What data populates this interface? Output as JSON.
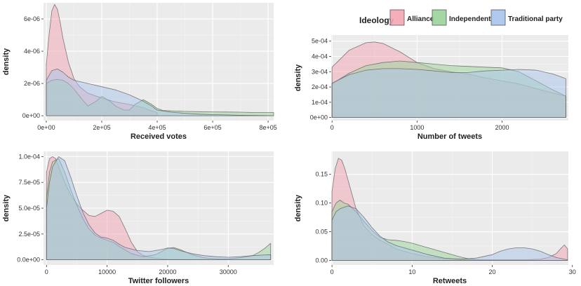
{
  "legend": {
    "title": "Ideology",
    "entries": [
      {
        "label": "Alliance",
        "color": "#f4a6b3"
      },
      {
        "label": "Independent",
        "color": "#9ad39a"
      },
      {
        "label": "Traditional party",
        "color": "#a9c3ec"
      }
    ]
  },
  "chart_data": [
    {
      "type": "area",
      "xlabel": "Received votes",
      "ylabel": "density",
      "xlim": [
        -10000,
        820000
      ],
      "ylim": [
        -3e-07,
        7e-06
      ],
      "xticks": [
        0,
        200000,
        400000,
        600000,
        800000
      ],
      "xtick_labels": [
        "0e+00",
        "2e+05",
        "4e+05",
        "6e+05",
        "8e+05"
      ],
      "yticks": [
        0,
        2e-06,
        4e-06,
        6e-06
      ],
      "ytick_labels": [
        "0e+00",
        "2e-06",
        "4e-06",
        "6e-06"
      ],
      "grid": true,
      "series": [
        {
          "name": "Alliance",
          "x": [
            0,
            10000,
            20000,
            30000,
            40000,
            50000,
            60000,
            80000,
            100000,
            120000,
            150000,
            200000,
            250000,
            300000,
            350000,
            380000,
            400000
          ],
          "y": [
            3.2e-06,
            5e-06,
            6.5e-06,
            6.9e-06,
            6.6e-06,
            5.8e-06,
            4.8e-06,
            3.3e-06,
            2.3e-06,
            1.8e-06,
            1.4e-06,
            1.1e-06,
            8.5e-07,
            7e-07,
            5e-07,
            3e-07,
            2e-07
          ]
        },
        {
          "name": "Independent",
          "x": [
            0,
            20000,
            40000,
            60000,
            80000,
            100000,
            130000,
            150000,
            180000,
            200000,
            230000,
            250000,
            280000,
            300000,
            320000,
            350000,
            380000,
            400000,
            420000,
            450000,
            500000,
            550000,
            600000,
            650000,
            700000,
            750000,
            800000,
            820000
          ],
          "y": [
            2e-06,
            2.2e-06,
            2.25e-06,
            2.2e-06,
            2e-06,
            1.65e-06,
            1e-06,
            6e-07,
            9e-07,
            1.2e-06,
            9e-07,
            6e-07,
            3.5e-07,
            3.5e-07,
            7e-07,
            1e-06,
            7e-07,
            4.5e-07,
            3.3e-07,
            3e-07,
            2.7e-07,
            2.5e-07,
            2.4e-07,
            2.3e-07,
            2.2e-07,
            2e-07,
            2e-07,
            2e-07
          ]
        },
        {
          "name": "Traditional party",
          "x": [
            0,
            20000,
            40000,
            60000,
            80000,
            100000,
            150000,
            200000,
            250000,
            300000,
            350000,
            380000,
            400000,
            420000,
            450000,
            500000,
            550000,
            600000,
            650000,
            700000,
            750000,
            800000,
            820000
          ],
          "y": [
            2.2e-06,
            2.8e-06,
            2.9e-06,
            2.7e-06,
            2.4e-06,
            2.2e-06,
            2e-06,
            1.8e-06,
            1.6e-06,
            1.3e-06,
            9e-07,
            6e-07,
            3.5e-07,
            3e-07,
            2.2e-07,
            1.5e-07,
            1e-07,
            7e-08,
            5e-08,
            3e-08,
            2e-08,
            1e-08,
            0
          ]
        }
      ]
    },
    {
      "type": "area",
      "xlabel": "Number of tweets",
      "ylabel": "density",
      "xlim": [
        -10,
        2780
      ],
      "ylim": [
        -2e-05,
        0.00054
      ],
      "xticks": [
        0,
        1000,
        2000
      ],
      "xtick_labels": [
        "0",
        "1000",
        "2000"
      ],
      "yticks": [
        0,
        0.0001,
        0.0002,
        0.0003,
        0.0004,
        0.0005
      ],
      "ytick_labels": [
        "0e+00",
        "1e-04",
        "2e-04",
        "3e-04",
        "4e-04",
        "5e-04"
      ],
      "grid": true,
      "series": [
        {
          "name": "Alliance",
          "x": [
            0,
            200,
            400,
            500,
            600,
            800,
            1000,
            1200,
            1400,
            1600,
            1800,
            2000,
            2200,
            2400,
            2600,
            2750
          ],
          "y": [
            0.00033,
            0.00044,
            0.00049,
            0.000495,
            0.000485,
            0.00043,
            0.00036,
            0.00032,
            0.0003,
            0.000285,
            0.00026,
            0.00024,
            0.00022,
            0.00019,
            0.00016,
            0.00014
          ]
        },
        {
          "name": "Independent",
          "x": [
            0,
            200,
            400,
            600,
            800,
            1000,
            1200,
            1400,
            1600,
            1800,
            2000,
            2200,
            2400,
            2600,
            2750
          ],
          "y": [
            0.00022,
            0.00029,
            0.00034,
            0.00036,
            0.00037,
            0.00036,
            0.00035,
            0.00034,
            0.000335,
            0.00033,
            0.000325,
            0.0003,
            0.00024,
            0.00018,
            0.00014
          ]
        },
        {
          "name": "Traditional party",
          "x": [
            0,
            200,
            400,
            600,
            800,
            1000,
            1200,
            1400,
            1600,
            1800,
            2000,
            2200,
            2400,
            2600,
            2750
          ],
          "y": [
            0.000225,
            0.00028,
            0.00031,
            0.00032,
            0.00032,
            0.000315,
            0.000305,
            0.000295,
            0.000295,
            0.000305,
            0.00031,
            0.000315,
            0.00031,
            0.000285,
            0.000255
          ]
        }
      ]
    },
    {
      "type": "area",
      "xlabel": "Twitter followers",
      "ylabel": "density",
      "xlim": [
        -500,
        37500
      ],
      "ylim": [
        -5e-06,
        0.000105
      ],
      "xticks": [
        0,
        10000,
        20000,
        30000
      ],
      "xtick_labels": [
        "0",
        "10000",
        "20000",
        "30000"
      ],
      "yticks": [
        0,
        2.5e-05,
        5e-05,
        7.5e-05,
        0.0001
      ],
      "ytick_labels": [
        "0.0e+00",
        "2.5e-05",
        "5.0e-05",
        "7.5e-05",
        "1.0e-04"
      ],
      "grid": true,
      "series": [
        {
          "name": "Alliance",
          "x": [
            0,
            500,
            1000,
            1500,
            2000,
            3000,
            4000,
            5000,
            6000,
            7000,
            8000,
            9000,
            10000,
            11000,
            12000,
            13000,
            14000,
            15000,
            16000,
            18000,
            20000,
            25000,
            30000,
            37000
          ],
          "y": [
            8.5e-05,
            9.8e-05,
            0.0001,
            9.8e-05,
            9e-05,
            7.5e-05,
            6.3e-05,
            5.4e-05,
            4.8e-05,
            4.3e-05,
            4.2e-05,
            4.5e-05,
            4.8e-05,
            4.7e-05,
            4.2e-05,
            3e-05,
            1.7e-05,
            8e-06,
            4e-06,
            1.5e-06,
            5e-07,
            2e-07,
            1e-07,
            0
          ]
        },
        {
          "name": "Independent",
          "x": [
            0,
            500,
            1000,
            2000,
            3000,
            4000,
            5000,
            6000,
            7000,
            8000,
            9000,
            10000,
            11000,
            12000,
            14000,
            16000,
            18000,
            20000,
            21000,
            22000,
            24000,
            26000,
            28000,
            30000,
            32000,
            34000,
            35000,
            36000,
            37000
          ],
          "y": [
            6e-05,
            8.5e-05,
            9.5e-05,
            9.8e-05,
            8.5e-05,
            6.8e-05,
            5.3e-05,
            4e-05,
            3e-05,
            2.4e-05,
            2.1e-05,
            1.9e-05,
            1.7e-05,
            1.3e-05,
            6e-06,
            3e-06,
            5e-06,
            1.1e-05,
            1.2e-05,
            1e-05,
            5e-06,
            2e-06,
            1e-06,
            1e-06,
            2e-06,
            4e-06,
            7e-06,
            1.1e-05,
            1.6e-05
          ]
        },
        {
          "name": "Traditional party",
          "x": [
            0,
            500,
            1000,
            2000,
            3000,
            4000,
            5000,
            6000,
            7000,
            8000,
            9000,
            10000,
            11000,
            12000,
            13000,
            15000,
            17000,
            19000,
            20000,
            21000,
            22000,
            24000,
            26000,
            28000,
            30000,
            32000,
            34000,
            37000
          ],
          "y": [
            5e-05,
            7.5e-05,
            9e-05,
            0.0001,
            9.6e-05,
            8e-05,
            6.2e-05,
            4.6e-05,
            3.4e-05,
            2.6e-05,
            2.2e-05,
            2.1e-05,
            1.9e-05,
            1.5e-05,
            1.2e-05,
            9e-06,
            8e-06,
            1e-05,
            1.15e-05,
            1.1e-05,
            9e-06,
            6e-06,
            4e-06,
            3e-06,
            2.5e-06,
            3e-06,
            4e-06,
            5e-06
          ]
        }
      ]
    },
    {
      "type": "area",
      "xlabel": "Retweets",
      "ylabel": "density",
      "xlim": [
        -0.1,
        29.5
      ],
      "ylim": [
        -0.008,
        0.19
      ],
      "xticks": [
        0,
        10,
        20,
        30
      ],
      "xtick_labels": [
        "0",
        "10",
        "20",
        "30"
      ],
      "yticks": [
        0,
        0.05,
        0.1,
        0.15
      ],
      "ytick_labels": [
        "0.00",
        "0.05",
        "0.10",
        "0.15"
      ],
      "grid": true,
      "series": [
        {
          "name": "Alliance",
          "x": [
            0,
            0.4,
            0.8,
            1.2,
            1.6,
            2.0,
            2.5,
            3.0,
            4.0,
            5.0,
            6.0,
            7.0,
            8.0,
            10,
            12,
            14,
            16,
            18,
            20,
            22,
            24,
            26,
            27,
            28,
            28.5,
            29,
            29.4
          ],
          "y": [
            0.12,
            0.16,
            0.178,
            0.175,
            0.16,
            0.14,
            0.115,
            0.09,
            0.06,
            0.045,
            0.035,
            0.028,
            0.02,
            0.012,
            0.006,
            0.003,
            0.002,
            0.001,
            0.001,
            0.001,
            0.001,
            0.002,
            0.005,
            0.012,
            0.02,
            0.027,
            0.02
          ]
        },
        {
          "name": "Independent",
          "x": [
            0,
            0.5,
            1.0,
            1.5,
            2.0,
            3.0,
            4.0,
            5.0,
            6.0,
            7.0,
            8.0,
            9.0,
            10,
            11,
            12,
            13,
            14,
            15,
            16,
            17,
            18,
            20,
            22,
            25,
            29.4
          ],
          "y": [
            0.085,
            0.1,
            0.105,
            0.1,
            0.098,
            0.085,
            0.068,
            0.052,
            0.04,
            0.036,
            0.035,
            0.033,
            0.03,
            0.026,
            0.022,
            0.018,
            0.014,
            0.01,
            0.006,
            0.003,
            0.001,
            0.0,
            0.0,
            0.0,
            0.0
          ]
        },
        {
          "name": "Traditional party",
          "x": [
            0,
            0.5,
            1.0,
            2.0,
            3.0,
            4.0,
            5.0,
            6.0,
            7.0,
            8.0,
            9.0,
            10,
            12,
            14,
            16,
            18,
            20,
            21,
            22,
            23,
            24,
            25,
            26,
            27,
            28,
            29.4
          ],
          "y": [
            0.07,
            0.085,
            0.09,
            0.095,
            0.09,
            0.075,
            0.057,
            0.042,
            0.032,
            0.026,
            0.022,
            0.018,
            0.01,
            0.004,
            0.002,
            0.004,
            0.01,
            0.016,
            0.02,
            0.022,
            0.022,
            0.02,
            0.016,
            0.01,
            0.005,
            0.001
          ]
        }
      ]
    }
  ]
}
